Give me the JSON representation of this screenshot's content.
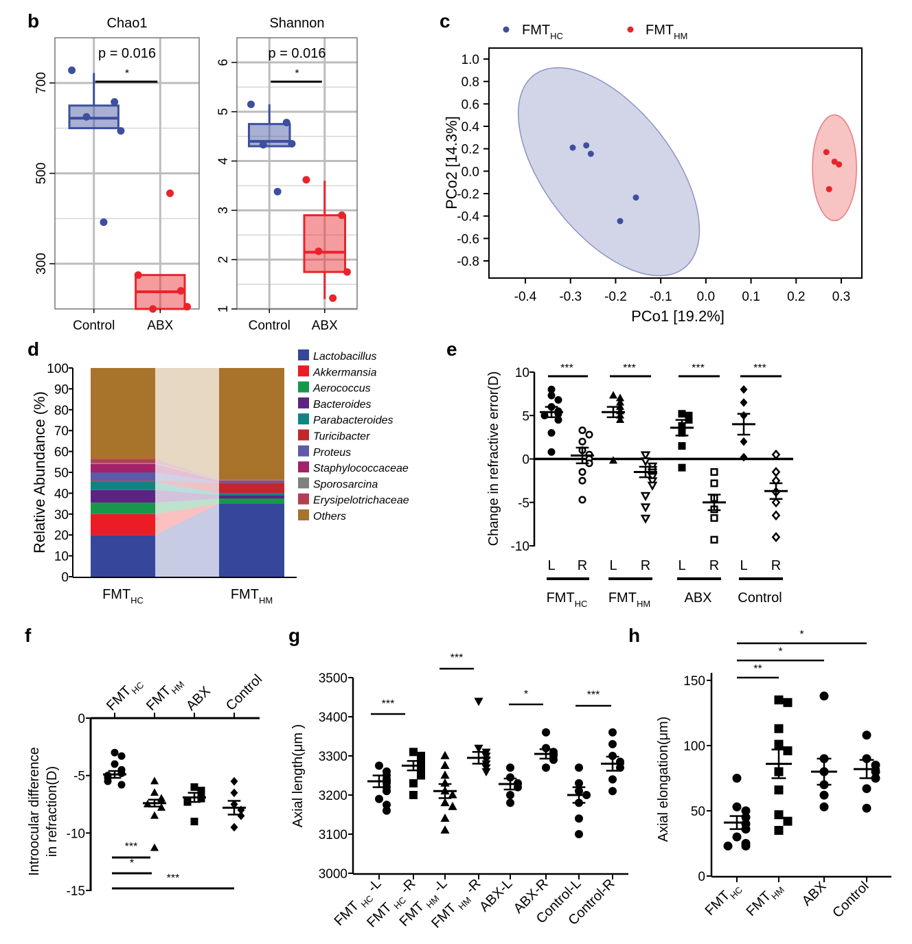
{
  "panel_letters": [
    "b",
    "c",
    "d",
    "e",
    "f",
    "g",
    "h"
  ],
  "chart_data": [
    {
      "id": "b1",
      "panel": "b",
      "type": "box",
      "title": "Chao1",
      "annotation": "p = 0.016",
      "sig": "*",
      "categories": [
        "Control",
        "ABX"
      ],
      "ylim": [
        200,
        800
      ],
      "yticks": [
        300,
        500,
        700
      ],
      "grid": true,
      "colors": [
        "#3d4f9e",
        "#e8242a"
      ],
      "boxes": [
        {
          "q1": 600,
          "median": 622,
          "q3": 650,
          "whisker_low": 600,
          "whisker_high": 722,
          "points": [
            728,
            658,
            625,
            594,
            392
          ]
        },
        {
          "q1": 200,
          "median": 238,
          "q3": 275,
          "whisker_low": 200,
          "whisker_high": 275,
          "points": [
            275,
            240,
            200,
            205,
            456
          ]
        }
      ]
    },
    {
      "id": "b2",
      "panel": "b",
      "type": "box",
      "title": "Shannon",
      "annotation": "p = 0.016",
      "sig": "*",
      "categories": [
        "Control",
        "ABX"
      ],
      "ylim": [
        1,
        6.5
      ],
      "yticks": [
        1,
        2,
        3,
        4,
        5,
        6
      ],
      "grid": true,
      "colors": [
        "#3d4f9e",
        "#e8242a"
      ],
      "boxes": [
        {
          "q1": 4.3,
          "median": 4.4,
          "q3": 4.75,
          "whisker_low": 4.3,
          "whisker_high": 5.15,
          "points": [
            5.15,
            4.78,
            4.33,
            4.35,
            3.38
          ]
        },
        {
          "q1": 1.75,
          "median": 2.15,
          "q3": 2.9,
          "whisker_low": 1.2,
          "whisker_high": 3.6,
          "points": [
            3.62,
            2.9,
            2.17,
            1.75,
            1.22
          ]
        }
      ]
    },
    {
      "id": "c",
      "panel": "c",
      "type": "scatter",
      "xlabel": "PCo1 [19.2%]",
      "ylabel": "PCo2 [14.3%]",
      "xlim": [
        -0.45,
        0.35
      ],
      "ylim": [
        -0.95,
        1.05
      ],
      "xticks": [
        -0.4,
        -0.3,
        -0.2,
        -0.1,
        0.0,
        0.1,
        0.2,
        0.3
      ],
      "yticks": [
        1.0,
        0.8,
        0.6,
        0.4,
        0.2,
        0.0,
        -0.2,
        -0.4,
        -0.6,
        -0.8
      ],
      "series": [
        {
          "name": "FMT",
          "sub": "HC",
          "color": "#3d4f9e",
          "points": [
            [
              -0.295,
              0.21
            ],
            [
              -0.265,
              0.23
            ],
            [
              -0.255,
              0.155
            ],
            [
              -0.155,
              -0.235
            ],
            [
              -0.19,
              -0.445
            ]
          ]
        },
        {
          "name": "FMT",
          "sub": "HM",
          "color": "#e8242a",
          "points": [
            [
              0.267,
              0.17
            ],
            [
              0.285,
              0.085
            ],
            [
              0.295,
              0.06
            ],
            [
              0.273,
              -0.16
            ]
          ]
        }
      ]
    },
    {
      "id": "d",
      "panel": "d",
      "type": "stacked-bar",
      "ylabel": "Relative Abundance (%)",
      "ylim": [
        0,
        100
      ],
      "yticks": [
        0,
        10,
        20,
        30,
        40,
        50,
        60,
        70,
        80,
        90,
        100
      ],
      "categories": [
        "FMT",
        "FMT"
      ],
      "category_subs": [
        "HC",
        "HM"
      ],
      "series": [
        {
          "name": "Lactobacillus",
          "color": "#36469a",
          "values": [
            20,
            35
          ]
        },
        {
          "name": "Akkermansia",
          "color": "#ec1c24",
          "values": [
            10,
            0
          ]
        },
        {
          "name": "Aerococcus",
          "color": "#17974a",
          "values": [
            5.5,
            2.5
          ]
        },
        {
          "name": "Bacteroides",
          "color": "#5c2482",
          "values": [
            6,
            1.5
          ]
        },
        {
          "name": "Parabacteroides",
          "color": "#0f8483",
          "values": [
            4,
            1
          ]
        },
        {
          "name": "Turicibacter",
          "color": "#c1272d",
          "values": [
            0.5,
            5
          ]
        },
        {
          "name": "Proteus",
          "color": "#5d5aa8",
          "values": [
            4,
            0.5
          ]
        },
        {
          "name": "Staphylococcaceae",
          "color": "#a3226a",
          "values": [
            4,
            0.5
          ]
        },
        {
          "name": "Sporosarcina",
          "color": "#808080",
          "values": [
            0.5,
            0.3
          ]
        },
        {
          "name": "Erysipelotrichaceae",
          "color": "#b33f54",
          "values": [
            2,
            0.2
          ]
        },
        {
          "name": "Others",
          "color": "#a8732a",
          "values": [
            43.5,
            53.5
          ]
        }
      ]
    },
    {
      "id": "e",
      "panel": "e",
      "type": "scatter",
      "ylabel": "Change in refractive error(D)",
      "ylim": [
        -10,
        10
      ],
      "yticks": [
        -10,
        -5,
        0,
        5,
        10
      ],
      "x_labels": [
        "L",
        "R",
        "L",
        "R",
        "L",
        "R",
        "L",
        "R"
      ],
      "groups": [
        {
          "name": "FMT",
          "sub": "HC"
        },
        {
          "name": "FMT",
          "sub": "HM"
        },
        {
          "name": "ABX",
          "sub": ""
        },
        {
          "name": "Control",
          "sub": ""
        }
      ],
      "sig": [
        "***",
        "***",
        "***",
        "***"
      ],
      "columns": [
        {
          "marker": "circle",
          "mean": 5.4,
          "sem": 0.6,
          "points": [
            8.0,
            7.3,
            6.8,
            6.0,
            5.5,
            5.2,
            5.0,
            4.5,
            3.0,
            0.8
          ]
        },
        {
          "marker": "circle-open",
          "mean": 0.4,
          "sem": 0.9,
          "points": [
            3.3,
            2.8,
            2.0,
            1.0,
            0.5,
            0.0,
            -0.5,
            -1.5,
            -2.5,
            -4.7
          ]
        },
        {
          "marker": "triangle",
          "mean": 5.4,
          "sem": 0.6,
          "points": [
            7.3,
            7.0,
            6.5,
            6.0,
            5.5,
            5.0,
            4.5,
            -0.2
          ]
        },
        {
          "marker": "triangle-down-open",
          "mean": -1.5,
          "sem": 0.6,
          "points": [
            0.5,
            -0.2,
            -0.8,
            -1.2,
            -1.5,
            -2.0,
            -2.5,
            -3.0,
            -4.2,
            -5.5,
            -6.8
          ]
        },
        {
          "marker": "square",
          "mean": 3.6,
          "sem": 0.9,
          "points": [
            5.2,
            5.0,
            4.5,
            3.8,
            3.0,
            1.5,
            -1.0
          ]
        },
        {
          "marker": "square-open",
          "mean": -5.0,
          "sem": 0.9,
          "points": [
            -1.5,
            -2.8,
            -4.5,
            -5.8,
            -6.8,
            -9.3
          ]
        },
        {
          "marker": "diamond",
          "mean": 4.0,
          "sem": 1.2,
          "points": [
            8.0,
            6.5,
            5.0,
            2.0,
            0.2
          ]
        },
        {
          "marker": "diamond-open",
          "mean": -3.7,
          "sem": 0.9,
          "points": [
            0.5,
            -1.5,
            -2.5,
            -3.8,
            -5.0,
            -6.5,
            -9.0
          ]
        }
      ]
    },
    {
      "id": "f",
      "panel": "f",
      "type": "scatter",
      "ylabel_lines": [
        "Introocular difference",
        "in refraction(D)"
      ],
      "ylim": [
        -15,
        0
      ],
      "yticks": [
        0,
        -5,
        -10,
        -15
      ],
      "groups": [
        {
          "name": "FMT",
          "sub": "HC"
        },
        {
          "name": "FMT",
          "sub": "HM"
        },
        {
          "name": "ABX",
          "sub": ""
        },
        {
          "name": "Control",
          "sub": ""
        }
      ],
      "columns": [
        {
          "marker": "circle",
          "mean": -4.9,
          "sem": 0.3,
          "points": [
            -3.0,
            -3.3,
            -4.0,
            -4.5,
            -4.8,
            -5.0,
            -5.2,
            -5.5,
            -5.8
          ]
        },
        {
          "marker": "triangle",
          "mean": -7.4,
          "sem": 0.3,
          "points": [
            -5.5,
            -6.5,
            -7.0,
            -7.2,
            -7.5,
            -7.8,
            -8.5,
            -11.3
          ]
        },
        {
          "marker": "square",
          "mean": -6.9,
          "sem": 0.4,
          "points": [
            -6.0,
            -6.3,
            -6.8,
            -7.0,
            -7.3,
            -9.0
          ]
        },
        {
          "marker": "diamond",
          "mean": -7.8,
          "sem": 0.6,
          "points": [
            -5.5,
            -6.5,
            -7.5,
            -8.0,
            -8.5,
            -9.5
          ]
        }
      ],
      "comparisons": [
        {
          "label": "***",
          "from": 0,
          "to": 1
        },
        {
          "label": "*",
          "from": 0,
          "to": 2
        },
        {
          "label": "***",
          "from": 0,
          "to": 3
        }
      ]
    },
    {
      "id": "g",
      "panel": "g",
      "type": "scatter",
      "ylabel": "Axial length(μm )",
      "ylim": [
        3000,
        3500
      ],
      "yticks": [
        3000,
        3100,
        3200,
        3300,
        3400,
        3500
      ],
      "x_labels": [
        {
          "name": "FMT",
          "sub": "HC",
          "suffix": "-L"
        },
        {
          "name": "FMT",
          "sub": "HC",
          "suffix": "-R"
        },
        {
          "name": "FMT",
          "sub": "HM",
          "suffix": "-L"
        },
        {
          "name": "FMT",
          "sub": "HM",
          "suffix": "-R"
        },
        {
          "name": "ABX-L",
          "sub": "",
          "suffix": ""
        },
        {
          "name": "ABX-R",
          "sub": "",
          "suffix": ""
        },
        {
          "name": "Control-L",
          "sub": "",
          "suffix": ""
        },
        {
          "name": "Control-R",
          "sub": "",
          "suffix": ""
        }
      ],
      "sig": [
        "***",
        "***",
        "*",
        "***"
      ],
      "columns": [
        {
          "marker": "circle",
          "mean": 3235,
          "sem": 15,
          "points": [
            3275,
            3260,
            3250,
            3240,
            3230,
            3220,
            3210,
            3190,
            3175,
            3160
          ]
        },
        {
          "marker": "square",
          "mean": 3275,
          "sem": 12,
          "points": [
            3310,
            3300,
            3290,
            3280,
            3270,
            3260,
            3250,
            3230,
            3200
          ]
        },
        {
          "marker": "triangle",
          "mean": 3210,
          "sem": 18,
          "points": [
            3300,
            3275,
            3250,
            3230,
            3210,
            3200,
            3180,
            3170,
            3140,
            3110
          ]
        },
        {
          "marker": "triangle-down",
          "mean": 3295,
          "sem": 15,
          "points": [
            3440,
            3320,
            3310,
            3300,
            3290,
            3280,
            3270,
            3260
          ]
        },
        {
          "marker": "circle",
          "mean": 3228,
          "sem": 14,
          "points": [
            3270,
            3245,
            3230,
            3220,
            3200,
            3180
          ]
        },
        {
          "marker": "circle",
          "mean": 3305,
          "sem": 12,
          "points": [
            3360,
            3320,
            3310,
            3300,
            3290,
            3270
          ]
        },
        {
          "marker": "circle",
          "mean": 3200,
          "sem": 20,
          "points": [
            3270,
            3230,
            3210,
            3200,
            3180,
            3140,
            3100
          ]
        },
        {
          "marker": "circle",
          "mean": 3280,
          "sem": 18,
          "points": [
            3360,
            3330,
            3300,
            3285,
            3270,
            3240,
            3210
          ]
        }
      ]
    },
    {
      "id": "h",
      "panel": "h",
      "type": "scatter",
      "ylabel": "Axial elongation(μm)",
      "ylim": [
        0,
        155
      ],
      "yticks": [
        0,
        50,
        100,
        150
      ],
      "groups": [
        {
          "name": "FMT",
          "sub": "HC"
        },
        {
          "name": "FMT",
          "sub": "HM"
        },
        {
          "name": "ABX",
          "sub": ""
        },
        {
          "name": "Control",
          "sub": ""
        }
      ],
      "columns": [
        {
          "marker": "circle",
          "mean": 41,
          "sem": 5,
          "points": [
            75,
            53,
            50,
            45,
            40,
            36,
            30,
            25,
            23,
            23
          ]
        },
        {
          "marker": "square",
          "mean": 86,
          "sem": 11,
          "points": [
            135,
            133,
            113,
            101,
            96,
            80,
            66,
            47,
            42,
            35
          ]
        },
        {
          "marker": "circle",
          "mean": 80,
          "sem": 10,
          "points": [
            138,
            90,
            80,
            70,
            62,
            53
          ]
        },
        {
          "marker": "circle",
          "mean": 82,
          "sem": 7,
          "points": [
            108,
            90,
            85,
            80,
            75,
            67,
            52
          ]
        }
      ],
      "comparisons": [
        {
          "label": "**",
          "from": 0,
          "to": 1
        },
        {
          "label": "*",
          "from": 0,
          "to": 2
        },
        {
          "label": "*",
          "from": 0,
          "to": 3
        }
      ]
    }
  ]
}
